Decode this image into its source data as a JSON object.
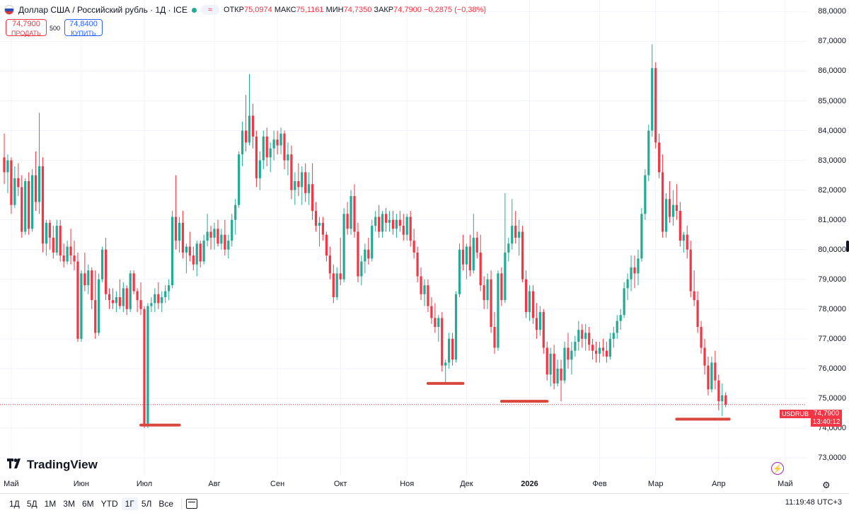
{
  "header": {
    "title": "Доллар США / Российский рубль · 1Д · ICE",
    "market_status_icon": "green-dot-icon",
    "wave_icon": "≈",
    "ohlc": {
      "open_label": "ОТКР",
      "open": "75,0974",
      "high_label": "МАКС",
      "high": "75,1161",
      "low_label": "МИН",
      "low": "74,7350",
      "close_label": "ЗАКР",
      "close": "74,7900",
      "change": "−0,2875 (−0,38%)"
    }
  },
  "trade": {
    "sell_price": "74,7900",
    "sell_label": "ПРОДАТЬ",
    "spread": "500",
    "buy_price": "74,8400",
    "buy_label": "КУПИТЬ"
  },
  "logo": {
    "text": "TradingView",
    "icon": "tradingview-logo-icon"
  },
  "last_price": {
    "symbol": "USDRUB",
    "price": "74,7900",
    "countdown": "13:40:12"
  },
  "bottom": {
    "ranges": [
      "1Д",
      "5Д",
      "1М",
      "3М",
      "6М",
      "YTD",
      "1Г",
      "5Л",
      "Все"
    ],
    "active_range": "1Г",
    "clock": "11:19:48 UTC+3"
  },
  "colors": {
    "up": "#22ab94",
    "down": "#f23645",
    "annotation": "#d9473c",
    "grid": "#f0f3fa"
  },
  "chart_data": {
    "type": "candlestick",
    "title": "Доллар США / Российский рубль · 1Д · ICE",
    "ylim": [
      72.5,
      88.2
    ],
    "y_ticks": [
      "88,0000",
      "87,0000",
      "86,0000",
      "85,0000",
      "84,0000",
      "83,0000",
      "82,0000",
      "81,0000",
      "80,0000",
      "79,0000",
      "78,0000",
      "77,0000",
      "76,0000",
      "75,0000",
      "74,0000",
      "73,0000"
    ],
    "x_ticks": [
      {
        "label": "Май",
        "idx": 2
      },
      {
        "label": "Июн",
        "idx": 22
      },
      {
        "label": "Июл",
        "idx": 40
      },
      {
        "label": "Авг",
        "idx": 60
      },
      {
        "label": "Сен",
        "idx": 78
      },
      {
        "label": "Окт",
        "idx": 96
      },
      {
        "label": "Ноя",
        "idx": 115
      },
      {
        "label": "Дек",
        "idx": 132
      },
      {
        "label": "2026",
        "idx": 150,
        "bold": true
      },
      {
        "label": "Фев",
        "idx": 170
      },
      {
        "label": "Мар",
        "idx": 186
      },
      {
        "label": "Апр",
        "idx": 204
      },
      {
        "label": "Май",
        "idx": 223
      }
    ],
    "candles": [
      [
        83.1,
        83.9,
        82.2,
        82.6
      ],
      [
        82.6,
        83.2,
        81.9,
        83.0
      ],
      [
        83.0,
        83.1,
        81.2,
        81.5
      ],
      [
        81.5,
        82.8,
        81.4,
        82.4
      ],
      [
        82.4,
        82.9,
        81.8,
        82.1
      ],
      [
        82.1,
        82.5,
        80.4,
        80.6
      ],
      [
        80.6,
        82.4,
        80.5,
        82.3
      ],
      [
        82.3,
        82.6,
        80.5,
        80.7
      ],
      [
        80.7,
        82.7,
        80.6,
        82.5
      ],
      [
        82.5,
        83.3,
        81.3,
        81.6
      ],
      [
        81.6,
        84.6,
        81.2,
        82.8
      ],
      [
        82.8,
        83.1,
        79.9,
        80.2
      ],
      [
        80.2,
        81.0,
        79.8,
        80.9
      ],
      [
        80.9,
        81.0,
        80.0,
        80.4
      ],
      [
        80.4,
        80.8,
        79.7,
        79.9
      ],
      [
        79.9,
        81.0,
        79.8,
        80.8
      ],
      [
        80.8,
        81.0,
        79.6,
        79.8
      ],
      [
        79.8,
        80.2,
        79.4,
        79.6
      ],
      [
        79.6,
        80.3,
        79.5,
        80.1
      ],
      [
        80.1,
        80.7,
        79.5,
        79.8
      ],
      [
        79.8,
        80.3,
        79.3,
        79.6
      ],
      [
        79.6,
        79.9,
        76.9,
        77.0
      ],
      [
        77.0,
        79.3,
        76.9,
        79.2
      ],
      [
        79.2,
        79.9,
        78.6,
        78.8
      ],
      [
        78.8,
        79.5,
        78.5,
        79.3
      ],
      [
        79.3,
        79.4,
        78.0,
        78.3
      ],
      [
        78.3,
        79.3,
        77.0,
        77.2
      ],
      [
        77.2,
        79.2,
        77.1,
        79.0
      ],
      [
        79.0,
        80.1,
        78.9,
        80.0
      ],
      [
        80.0,
        80.4,
        78.3,
        78.5
      ],
      [
        78.5,
        78.7,
        78.0,
        78.3
      ],
      [
        78.3,
        78.7,
        78.0,
        78.2
      ],
      [
        78.2,
        78.6,
        77.9,
        78.4
      ],
      [
        78.4,
        79.0,
        78.0,
        78.1
      ],
      [
        78.1,
        78.9,
        77.9,
        78.7
      ],
      [
        78.7,
        78.8,
        77.8,
        78.0
      ],
      [
        78.0,
        79.3,
        77.9,
        79.2
      ],
      [
        79.2,
        79.3,
        78.5,
        78.6
      ],
      [
        78.6,
        78.7,
        77.9,
        78.3
      ],
      [
        78.3,
        78.9,
        77.8,
        78.0
      ],
      [
        78.0,
        78.1,
        74.0,
        74.1
      ],
      [
        74.1,
        78.2,
        74.0,
        78.1
      ],
      [
        78.1,
        78.4,
        77.9,
        78.2
      ],
      [
        78.2,
        78.7,
        77.9,
        78.5
      ],
      [
        78.5,
        78.9,
        78.0,
        78.2
      ],
      [
        78.2,
        78.6,
        77.9,
        78.4
      ],
      [
        78.4,
        78.8,
        78.2,
        78.6
      ],
      [
        78.6,
        79.0,
        78.3,
        78.8
      ],
      [
        78.8,
        81.3,
        78.7,
        81.1
      ],
      [
        81.1,
        82.5,
        80.0,
        80.3
      ],
      [
        80.3,
        81.1,
        79.9,
        80.9
      ],
      [
        80.9,
        81.3,
        79.7,
        79.9
      ],
      [
        79.9,
        80.2,
        79.2,
        80.1
      ],
      [
        80.1,
        80.6,
        79.6,
        79.8
      ],
      [
        79.8,
        80.1,
        79.3,
        79.5
      ],
      [
        79.5,
        80.3,
        79.1,
        80.2
      ],
      [
        80.2,
        80.3,
        79.4,
        79.6
      ],
      [
        79.6,
        80.5,
        79.5,
        80.3
      ],
      [
        80.3,
        81.2,
        80.1,
        80.6
      ],
      [
        80.6,
        80.8,
        80.0,
        80.4
      ],
      [
        80.4,
        80.9,
        80.0,
        80.7
      ],
      [
        80.7,
        81.0,
        80.1,
        80.2
      ],
      [
        80.2,
        80.7,
        80.0,
        80.5
      ],
      [
        80.5,
        81.0,
        79.8,
        80.0
      ],
      [
        80.0,
        80.5,
        79.7,
        80.3
      ],
      [
        80.3,
        81.2,
        80.1,
        81.0
      ],
      [
        81.0,
        81.7,
        80.5,
        81.5
      ],
      [
        81.5,
        83.3,
        81.4,
        83.2
      ],
      [
        83.2,
        84.3,
        82.8,
        84.0
      ],
      [
        84.0,
        85.2,
        83.3,
        83.6
      ],
      [
        83.6,
        85.9,
        83.5,
        84.5
      ],
      [
        84.5,
        84.9,
        83.4,
        83.8
      ],
      [
        83.8,
        84.0,
        82.1,
        82.4
      ],
      [
        82.4,
        83.3,
        82.0,
        83.0
      ],
      [
        83.0,
        84.0,
        82.7,
        83.8
      ],
      [
        83.8,
        84.1,
        82.8,
        83.1
      ],
      [
        83.1,
        83.6,
        82.6,
        83.4
      ],
      [
        83.4,
        84.0,
        83.0,
        83.7
      ],
      [
        83.7,
        84.0,
        83.2,
        83.5
      ],
      [
        83.5,
        84.1,
        83.2,
        83.9
      ],
      [
        83.9,
        84.0,
        82.7,
        83.0
      ],
      [
        83.0,
        83.6,
        82.5,
        83.2
      ],
      [
        83.2,
        83.5,
        81.7,
        82.0
      ],
      [
        82.0,
        82.6,
        81.5,
        82.3
      ],
      [
        82.3,
        82.9,
        81.8,
        82.1
      ],
      [
        82.1,
        82.8,
        81.5,
        82.6
      ],
      [
        82.6,
        82.9,
        81.6,
        81.9
      ],
      [
        81.9,
        82.6,
        81.5,
        82.2
      ],
      [
        82.2,
        82.9,
        81.0,
        81.3
      ],
      [
        81.3,
        81.6,
        80.6,
        80.8
      ],
      [
        80.8,
        81.1,
        80.1,
        80.9
      ],
      [
        80.9,
        81.1,
        80.3,
        80.5
      ],
      [
        80.5,
        80.6,
        79.6,
        79.8
      ],
      [
        79.8,
        80.1,
        79.0,
        79.2
      ],
      [
        79.2,
        79.5,
        78.2,
        78.4
      ],
      [
        78.4,
        79.4,
        78.3,
        79.2
      ],
      [
        79.2,
        80.4,
        78.8,
        79.0
      ],
      [
        79.0,
        81.4,
        78.9,
        81.2
      ],
      [
        81.2,
        81.6,
        80.5,
        80.7
      ],
      [
        80.7,
        82.0,
        80.5,
        81.8
      ],
      [
        81.8,
        82.2,
        80.4,
        80.6
      ],
      [
        80.6,
        80.9,
        78.9,
        79.1
      ],
      [
        79.1,
        79.8,
        78.8,
        79.6
      ],
      [
        79.6,
        80.2,
        79.2,
        80.0
      ],
      [
        80.0,
        80.4,
        79.5,
        79.7
      ],
      [
        79.7,
        81.0,
        79.6,
        80.8
      ],
      [
        80.8,
        81.3,
        80.6,
        81.1
      ],
      [
        81.1,
        81.5,
        80.4,
        80.6
      ],
      [
        80.6,
        81.3,
        80.4,
        81.2
      ],
      [
        81.2,
        81.4,
        80.6,
        80.9
      ],
      [
        80.9,
        81.3,
        80.6,
        81.0
      ],
      [
        81.0,
        81.3,
        80.5,
        80.7
      ],
      [
        80.7,
        81.2,
        80.4,
        81.0
      ],
      [
        81.0,
        81.3,
        80.6,
        80.8
      ],
      [
        80.8,
        81.2,
        80.3,
        80.5
      ],
      [
        80.5,
        81.2,
        80.3,
        81.1
      ],
      [
        81.1,
        81.3,
        80.1,
        80.3
      ],
      [
        80.3,
        80.7,
        79.7,
        79.9
      ],
      [
        79.9,
        80.1,
        78.9,
        79.1
      ],
      [
        79.1,
        79.4,
        78.3,
        78.5
      ],
      [
        78.5,
        79.0,
        78.1,
        78.8
      ],
      [
        78.8,
        79.0,
        77.9,
        78.1
      ],
      [
        78.1,
        78.4,
        77.5,
        77.7
      ],
      [
        77.7,
        78.2,
        77.2,
        77.4
      ],
      [
        77.4,
        77.8,
        76.9,
        77.7
      ],
      [
        77.7,
        77.9,
        75.9,
        76.1
      ],
      [
        76.1,
        76.3,
        75.5,
        76.2
      ],
      [
        76.2,
        77.2,
        76.0,
        77.0
      ],
      [
        77.0,
        77.2,
        76.1,
        76.3
      ],
      [
        76.3,
        78.6,
        76.2,
        78.5
      ],
      [
        78.5,
        80.2,
        78.4,
        80.0
      ],
      [
        80.0,
        80.5,
        79.3,
        79.5
      ],
      [
        79.5,
        80.2,
        79.0,
        80.1
      ],
      [
        80.1,
        80.5,
        79.1,
        79.3
      ],
      [
        79.3,
        81.2,
        79.2,
        80.4
      ],
      [
        80.4,
        80.6,
        79.7,
        79.9
      ],
      [
        79.9,
        80.5,
        78.6,
        78.8
      ],
      [
        78.8,
        79.1,
        78.0,
        78.3
      ],
      [
        78.3,
        79.2,
        78.0,
        79.0
      ],
      [
        79.0,
        79.3,
        77.2,
        77.4
      ],
      [
        77.4,
        77.9,
        76.5,
        76.7
      ],
      [
        76.7,
        79.3,
        76.6,
        79.2
      ],
      [
        79.2,
        79.4,
        78.1,
        78.3
      ],
      [
        78.3,
        81.9,
        78.2,
        79.9
      ],
      [
        79.9,
        80.4,
        79.6,
        80.2
      ],
      [
        80.2,
        81.7,
        80.0,
        80.8
      ],
      [
        80.8,
        81.3,
        80.2,
        80.4
      ],
      [
        80.4,
        81.0,
        79.8,
        80.6
      ],
      [
        80.6,
        80.8,
        78.9,
        79.0
      ],
      [
        79.0,
        79.3,
        77.7,
        77.9
      ],
      [
        77.9,
        78.8,
        77.6,
        78.6
      ],
      [
        78.6,
        78.8,
        77.5,
        77.7
      ],
      [
        77.7,
        78.2,
        77.0,
        77.3
      ],
      [
        77.3,
        78.1,
        77.1,
        77.9
      ],
      [
        77.9,
        78.0,
        76.5,
        76.7
      ],
      [
        76.7,
        76.9,
        75.6,
        75.8
      ],
      [
        75.8,
        76.7,
        75.4,
        76.5
      ],
      [
        76.5,
        76.8,
        75.3,
        75.5
      ],
      [
        75.5,
        76.3,
        75.4,
        76.0
      ],
      [
        76.0,
        76.3,
        74.9,
        75.6
      ],
      [
        75.6,
        76.9,
        75.5,
        76.7
      ],
      [
        76.7,
        77.2,
        76.0,
        76.3
      ],
      [
        76.3,
        76.9,
        75.8,
        76.6
      ],
      [
        76.6,
        77.1,
        76.4,
        76.9
      ],
      [
        76.9,
        77.6,
        76.6,
        77.3
      ],
      [
        77.3,
        77.5,
        76.7,
        77.0
      ],
      [
        77.0,
        77.5,
        76.6,
        77.2
      ],
      [
        77.2,
        77.4,
        76.6,
        76.8
      ],
      [
        76.8,
        77.0,
        76.3,
        76.6
      ],
      [
        76.6,
        76.9,
        76.2,
        76.5
      ],
      [
        76.5,
        76.9,
        76.2,
        76.7
      ],
      [
        76.7,
        77.0,
        76.4,
        76.6
      ],
      [
        76.6,
        76.9,
        76.2,
        76.4
      ],
      [
        76.4,
        77.2,
        76.3,
        77.0
      ],
      [
        77.0,
        77.4,
        76.7,
        77.2
      ],
      [
        77.2,
        77.8,
        77.0,
        77.6
      ],
      [
        77.6,
        78.0,
        77.3,
        77.8
      ],
      [
        77.8,
        78.9,
        77.7,
        78.7
      ],
      [
        78.7,
        79.2,
        78.3,
        79.0
      ],
      [
        79.0,
        79.8,
        78.6,
        79.4
      ],
      [
        79.4,
        79.8,
        78.7,
        79.2
      ],
      [
        79.2,
        80.0,
        78.8,
        79.7
      ],
      [
        79.7,
        81.4,
        79.6,
        81.2
      ],
      [
        81.2,
        82.7,
        81.0,
        82.5
      ],
      [
        82.5,
        84.2,
        82.3,
        84.0
      ],
      [
        84.0,
        86.9,
        83.8,
        86.1
      ],
      [
        86.1,
        86.3,
        83.4,
        83.6
      ],
      [
        83.6,
        83.9,
        82.4,
        82.6
      ],
      [
        82.6,
        83.2,
        80.4,
        80.6
      ],
      [
        80.6,
        81.9,
        80.4,
        81.7
      ],
      [
        81.7,
        82.3,
        80.9,
        81.1
      ],
      [
        81.1,
        82.0,
        80.8,
        81.5
      ],
      [
        81.5,
        82.2,
        81.0,
        81.3
      ],
      [
        81.3,
        81.6,
        80.1,
        80.3
      ],
      [
        80.3,
        80.6,
        79.9,
        80.5
      ],
      [
        80.5,
        80.8,
        79.7,
        80.0
      ],
      [
        80.0,
        80.3,
        78.4,
        78.6
      ],
      [
        78.6,
        79.3,
        78.1,
        78.3
      ],
      [
        78.3,
        78.6,
        77.2,
        77.4
      ],
      [
        77.4,
        77.6,
        76.5,
        76.7
      ],
      [
        76.7,
        77.0,
        75.8,
        76.1
      ],
      [
        76.1,
        76.4,
        75.1,
        75.3
      ],
      [
        75.3,
        76.4,
        75.2,
        76.2
      ],
      [
        76.2,
        76.6,
        75.3,
        75.6
      ],
      [
        75.6,
        75.8,
        74.6,
        74.9
      ],
      [
        74.9,
        75.5,
        74.4,
        75.1
      ],
      [
        75.1,
        75.2,
        74.7,
        74.79
      ]
    ],
    "annotations": [
      {
        "type": "support-line",
        "y": 74.1,
        "from_idx": 39,
        "to_idx": 50
      },
      {
        "type": "support-line",
        "y": 75.5,
        "from_idx": 121,
        "to_idx": 131
      },
      {
        "type": "support-line",
        "y": 74.9,
        "from_idx": 142,
        "to_idx": 155
      },
      {
        "type": "support-line",
        "y": 74.3,
        "from_idx": 192,
        "to_idx": 207
      }
    ],
    "current_price": 74.79
  }
}
